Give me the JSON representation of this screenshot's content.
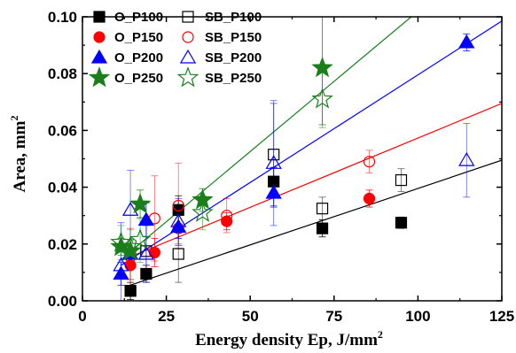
{
  "chart_data": {
    "type": "scatter",
    "xlabel": "Energy density Ep, J/mm",
    "xlabel_sup": "2",
    "ylabel": "Area, mm",
    "ylabel_sup": "2",
    "xlim": [
      0,
      125
    ],
    "ylim": [
      0,
      0.1
    ],
    "xticks": [
      0,
      25,
      50,
      75,
      100,
      125
    ],
    "yticks": [
      0.0,
      0.02,
      0.04,
      0.06,
      0.08,
      0.1
    ],
    "xtick_labels": [
      "0",
      "25",
      "50",
      "75",
      "100",
      "125"
    ],
    "ytick_labels": [
      "0.00",
      "0.02",
      "0.04",
      "0.06",
      "0.08",
      "0.10"
    ],
    "grid": false,
    "legend_position": "top-left",
    "series": [
      {
        "name": "O_P100",
        "color": "#000000",
        "marker": "square",
        "filled": true,
        "points": [
          [
            14.3,
            0.0035,
            0.003
          ],
          [
            19,
            0.0095,
            0.003
          ],
          [
            28.6,
            0.032,
            0.005
          ],
          [
            57,
            0.042,
            0.005
          ],
          [
            71.5,
            0.0255,
            0.003
          ],
          [
            95,
            0.0275,
            0.002
          ]
        ]
      },
      {
        "name": "SB_P100",
        "color": "#000000",
        "marker": "square",
        "filled": false,
        "points": [
          [
            14.3,
            0.0035,
            0.008
          ],
          [
            19,
            0.0175,
            0.01
          ],
          [
            28.6,
            0.0165,
            0.01
          ],
          [
            57,
            0.0515,
            0.018
          ],
          [
            71.5,
            0.0325,
            0.004
          ],
          [
            95,
            0.0425,
            0.004
          ]
        ]
      },
      {
        "name": "O_P150",
        "color": "#ff0000",
        "marker": "circle",
        "filled": true,
        "points": [
          [
            14.3,
            0.0125,
            0.005
          ],
          [
            21.5,
            0.017,
            0.005
          ],
          [
            28.6,
            0.0255,
            0.006
          ],
          [
            43,
            0.028,
            0.003
          ],
          [
            85.5,
            0.036,
            0.003
          ]
        ]
      },
      {
        "name": "SB_P150",
        "color": "#ff0000",
        "marker": "circle",
        "filled": false,
        "points": [
          [
            14.3,
            0.0155,
            0.01
          ],
          [
            21.5,
            0.029,
            0.015
          ],
          [
            28.6,
            0.0335,
            0.015
          ],
          [
            43,
            0.03,
            0.006
          ],
          [
            85.5,
            0.049,
            0.004
          ]
        ]
      },
      {
        "name": "O_P200",
        "color": "#0000ff",
        "marker": "triangle",
        "filled": true,
        "points": [
          [
            11.5,
            0.0095,
            0.004
          ],
          [
            14.3,
            0.0165,
            0.005
          ],
          [
            19,
            0.0285,
            0.006
          ],
          [
            28.6,
            0.026,
            0.004
          ],
          [
            57,
            0.038,
            0.005
          ],
          [
            114.5,
            0.091,
            0.003
          ]
        ]
      },
      {
        "name": "SB_P200",
        "color": "#0000ff",
        "marker": "triangle",
        "filled": false,
        "points": [
          [
            11.5,
            0.0125,
            0.015
          ],
          [
            14.3,
            0.032,
            0.014
          ],
          [
            19,
            0.0165,
            0.01
          ],
          [
            28.6,
            0.028,
            0.008
          ],
          [
            57,
            0.0485,
            0.022
          ],
          [
            114.5,
            0.0495,
            0.013
          ]
        ]
      },
      {
        "name": "O_P250",
        "color": "#1a7f1a",
        "marker": "star",
        "filled": true,
        "points": [
          [
            11.5,
            0.019,
            0.003
          ],
          [
            14.3,
            0.0175,
            0.004
          ],
          [
            17.2,
            0.034,
            0.005
          ],
          [
            35.8,
            0.0355,
            0.004
          ],
          [
            71.5,
            0.082,
            0.02
          ]
        ]
      },
      {
        "name": "SB_P250",
        "color": "#1a7f1a",
        "marker": "star",
        "filled": false,
        "points": [
          [
            11.5,
            0.0205,
            0.006
          ],
          [
            14.3,
            0.019,
            0.006
          ],
          [
            17.2,
            0.0215,
            0.008
          ],
          [
            35.8,
            0.031,
            0.006
          ],
          [
            71.5,
            0.071,
            0.01
          ]
        ]
      }
    ],
    "fit_lines": [
      {
        "color": "#000000",
        "from": [
          14.3,
          0.0055
        ],
        "to": [
          125,
          0.0495
        ]
      },
      {
        "color": "#ff0000",
        "from": [
          14.3,
          0.0155
        ],
        "to": [
          125,
          0.0695
        ]
      },
      {
        "color": "#0000ff",
        "from": [
          11.5,
          0.0125
        ],
        "to": [
          125,
          0.0985
        ]
      },
      {
        "color": "#1a7f1a",
        "from": [
          11.5,
          0.0145
        ],
        "to": [
          98,
          0.1
        ]
      }
    ]
  }
}
